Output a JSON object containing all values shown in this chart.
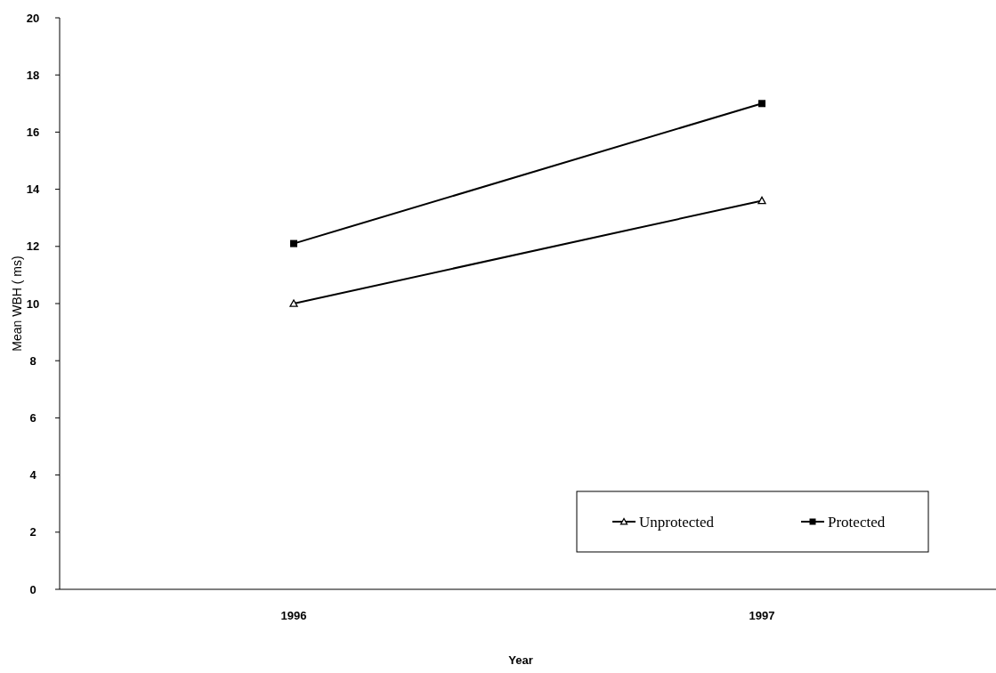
{
  "chart_data": {
    "type": "line",
    "xlabel": "Year",
    "ylabel": "Mean WBH ( ms)",
    "categories": [
      "1996",
      "1997"
    ],
    "series": [
      {
        "name": "Unprotected",
        "color": "#000000",
        "marker": "triangle",
        "values": [
          10.0,
          13.6
        ]
      },
      {
        "name": "Protected",
        "color": "#000000",
        "marker": "square",
        "values": [
          12.1,
          17.0
        ]
      }
    ],
    "ylim": [
      0,
      20
    ],
    "yticks": [
      0,
      2,
      4,
      6,
      8,
      10,
      12,
      14,
      16,
      18,
      20
    ],
    "grid": false,
    "legend": "bottom right",
    "line_style": "solid"
  }
}
